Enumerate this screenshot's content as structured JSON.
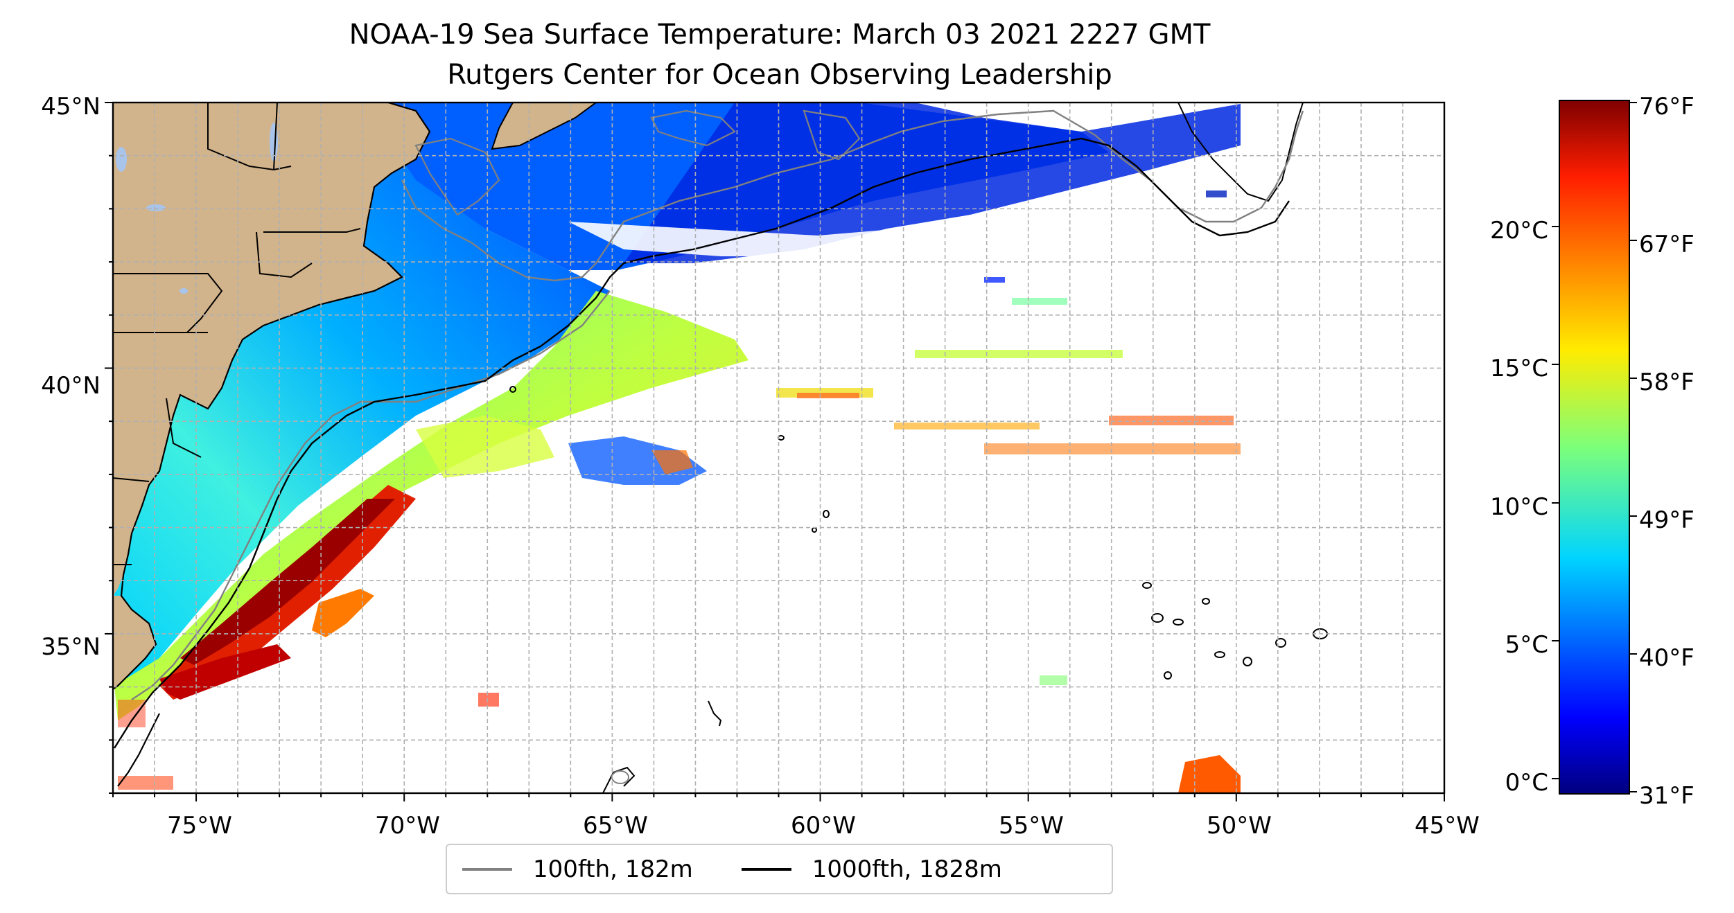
{
  "title": {
    "line1": "NOAA-19 Sea Surface Temperature: March 03 2021 2227 GMT",
    "line2": "Rutgers Center for Ocean Observing Leadership"
  },
  "map": {
    "lon_range": [
      -77,
      -45
    ],
    "lat_range": [
      32,
      45
    ],
    "lon_ticks": [
      "75°W",
      "70°W",
      "65°W",
      "60°W",
      "55°W",
      "50°W",
      "45°W"
    ],
    "lat_ticks": [
      "35°N",
      "40°N",
      "45°N"
    ],
    "gridlines": true,
    "land_color": "#d2b48c",
    "lake_color": "#a9c4ea"
  },
  "legend": {
    "items": [
      {
        "label": "100fth, 182m",
        "color": "#808080"
      },
      {
        "label": "1000fth, 1828m",
        "color": "#000000"
      }
    ]
  },
  "colorbar": {
    "colormap": "jet",
    "range_f": [
      31,
      76
    ],
    "fahrenheit_ticks": [
      "76°F",
      "67°F",
      "58°F",
      "49°F",
      "40°F",
      "31°F"
    ],
    "celsius_ticks": [
      "20°C",
      "15°C",
      "10°C",
      "5°C",
      "0°C"
    ]
  }
}
